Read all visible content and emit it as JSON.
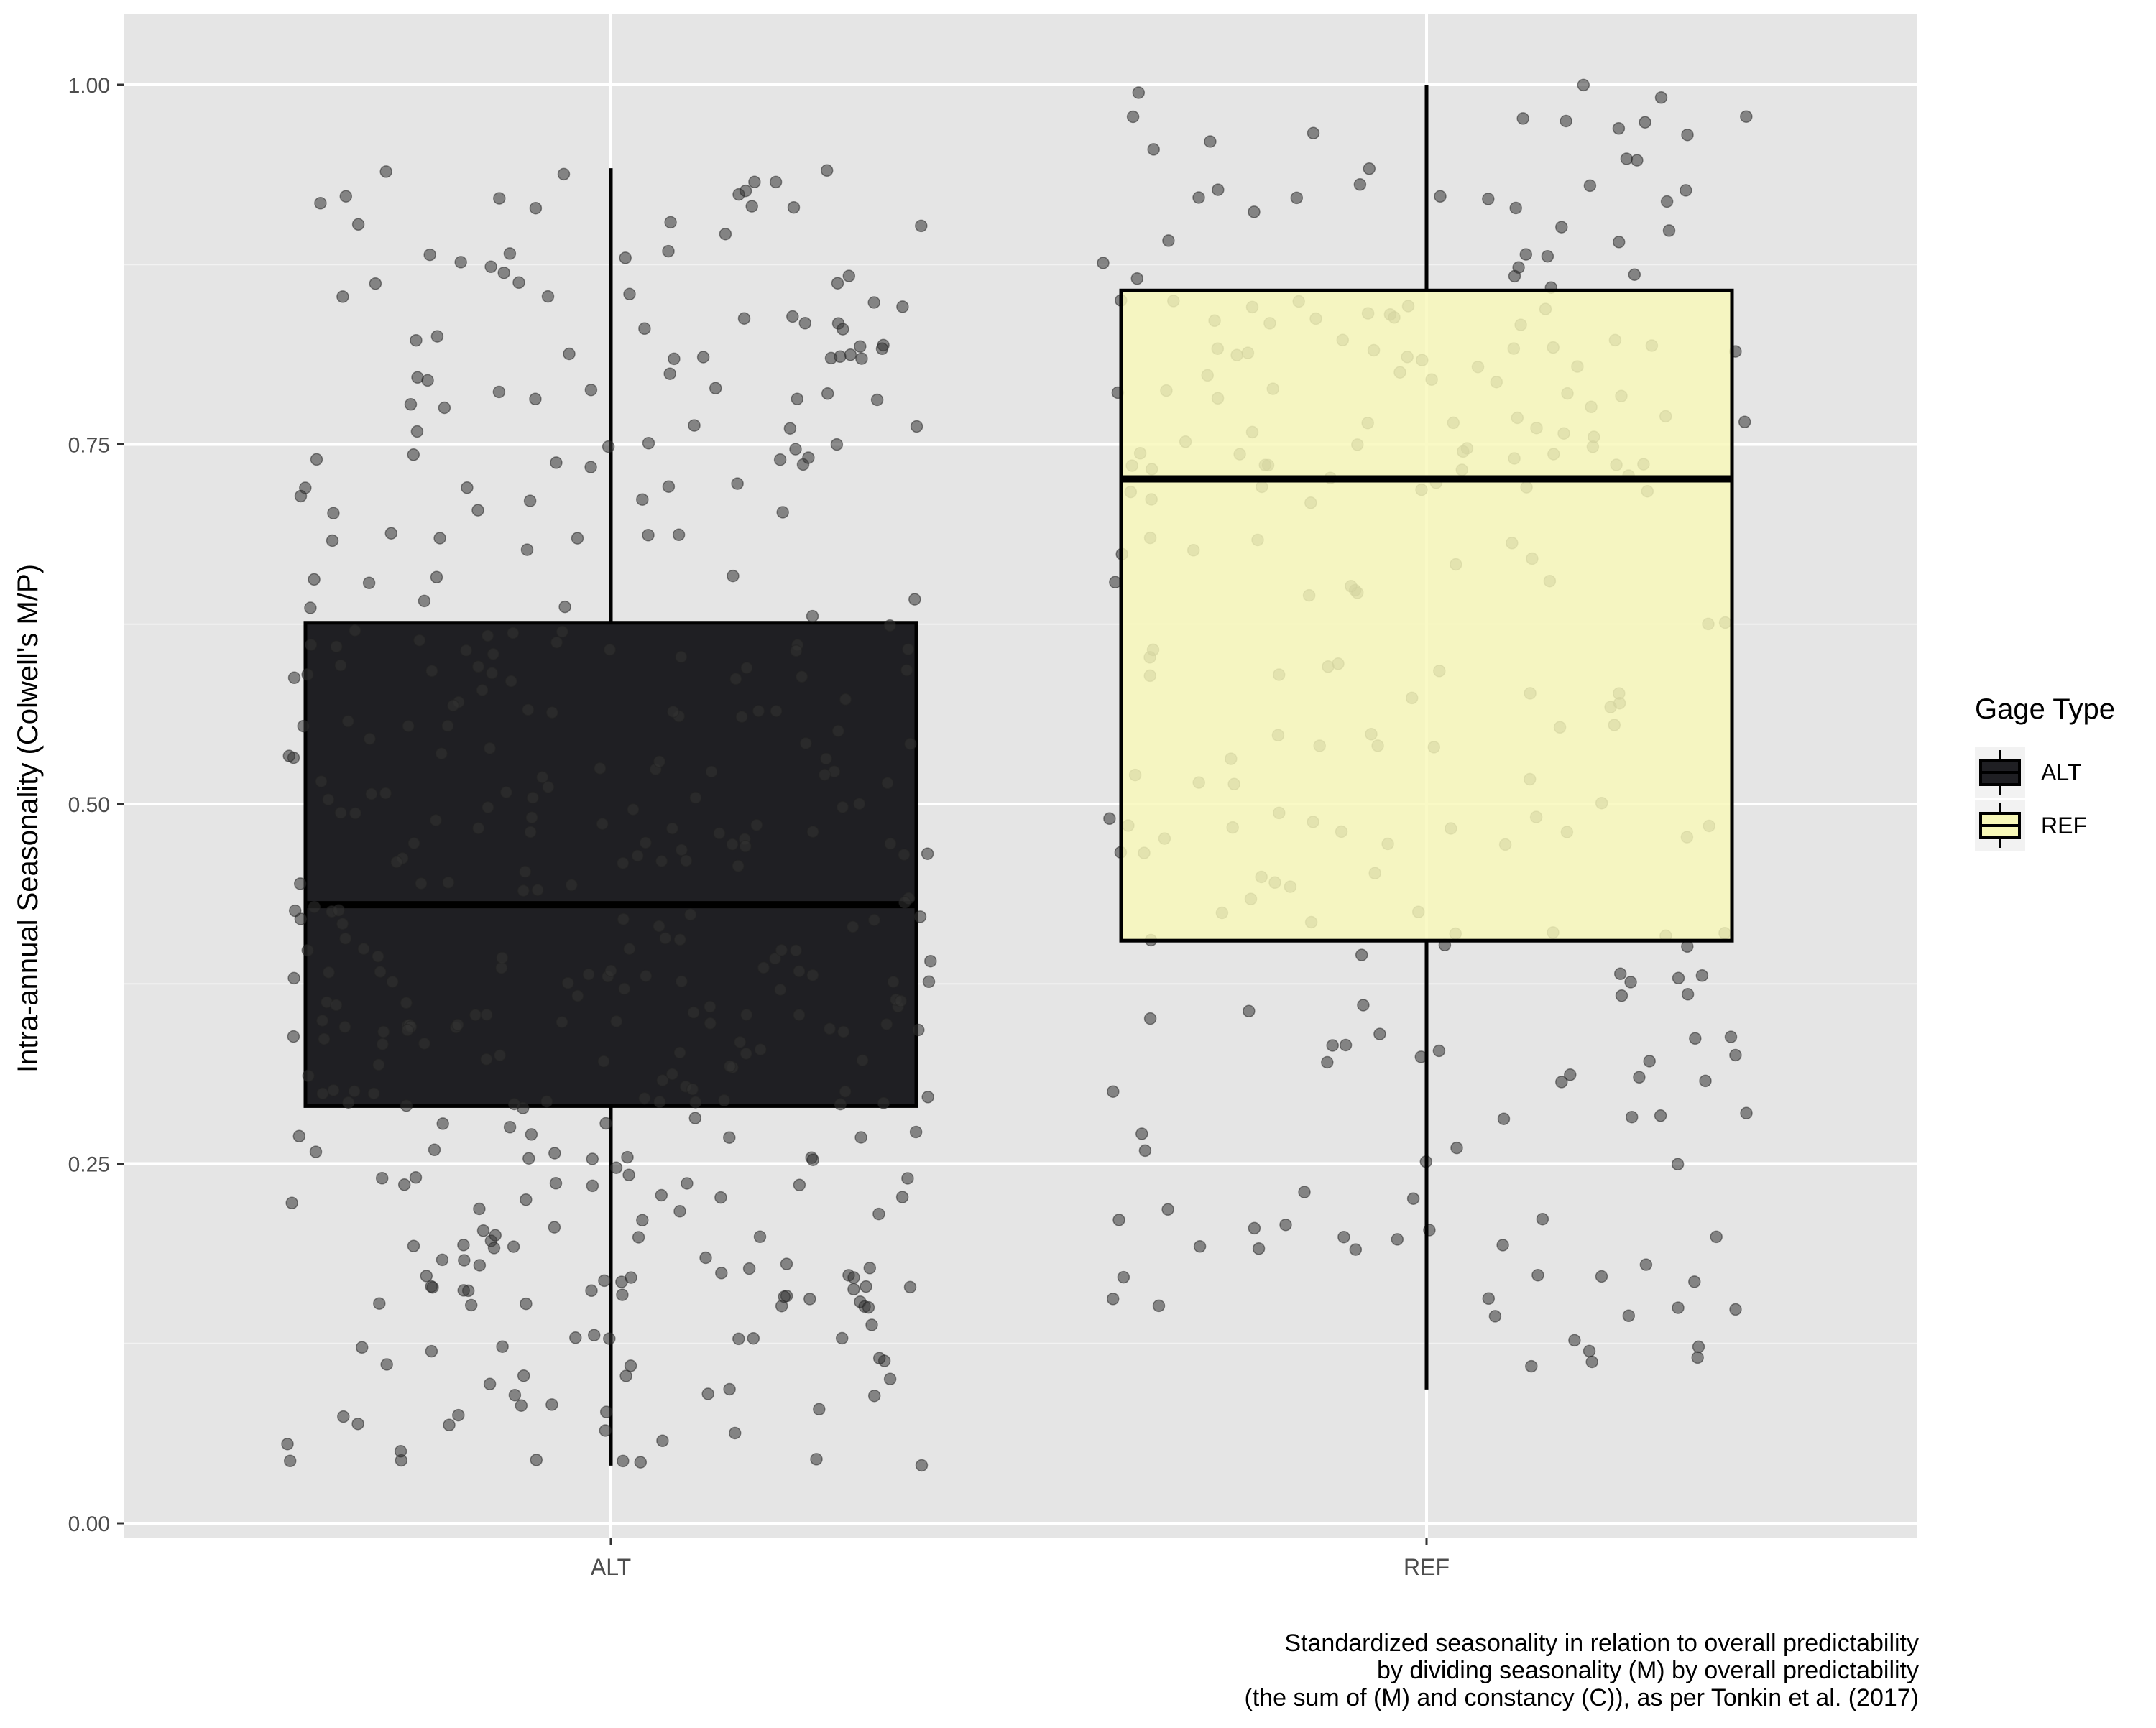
{
  "chart_data": {
    "type": "box",
    "ylabel": "Intra-annual Seasonality (Colwell's M/P)",
    "xlabel": "",
    "categories": [
      "ALT",
      "REF"
    ],
    "ylim": [
      0,
      1
    ],
    "y_ticks": [
      "0.00",
      "0.25",
      "0.50",
      "0.75",
      "1.00"
    ],
    "grid": true,
    "legend": {
      "title": "Gage Type",
      "position": "right",
      "entries": [
        "ALT",
        "REF"
      ]
    },
    "colors": {
      "ALT": "#1f1f23",
      "REF": "#f8f8b8",
      "panel_background": "#e5e5e5",
      "grid": "#ffffff",
      "points": "#333333"
    },
    "series": [
      {
        "name": "ALT",
        "whisker_low": 0.04,
        "q1": 0.29,
        "median": 0.43,
        "q3": 0.626,
        "whisker_high": 0.942,
        "n_points": 440,
        "point_range": [
          0.04,
          0.942
        ]
      },
      {
        "name": "REF",
        "whisker_low": 0.093,
        "q1": 0.405,
        "median": 0.726,
        "q3": 0.857,
        "whisker_high": 1.0,
        "n_points": 250,
        "point_range": [
          0.093,
          1.0
        ]
      }
    ],
    "caption": [
      "Standardized seasonality in relation to overall predictability",
      "by dividing seasonality (M) by overall predictability",
      "(the sum of (M) and constancy (C)), as per Tonkin et al. (2017)"
    ]
  }
}
